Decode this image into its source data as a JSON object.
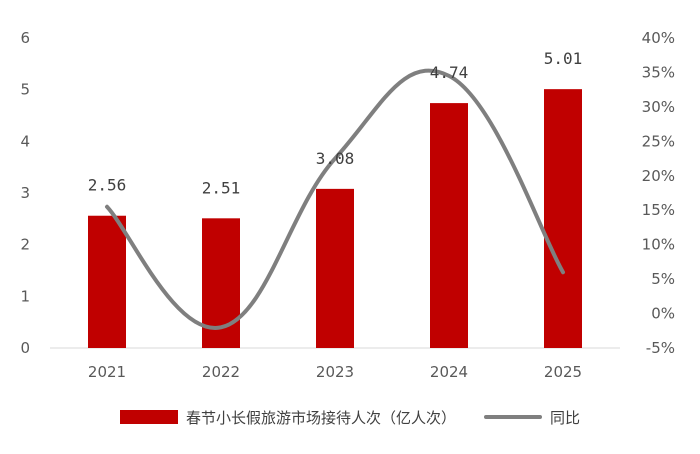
{
  "chart_data": {
    "type": "bar",
    "categories": [
      "2021",
      "2022",
      "2023",
      "2024",
      "2025"
    ],
    "series": [
      {
        "name": "春节小长假旅游市场接待人次（亿人次）",
        "type": "bar",
        "axis": "left",
        "values": [
          2.56,
          2.51,
          3.08,
          4.74,
          5.01
        ],
        "labels": [
          "2.56",
          "2.51",
          "3.08",
          "4.74",
          "5.01"
        ],
        "color": "#c00000"
      },
      {
        "name": "同比",
        "type": "line",
        "axis": "right",
        "smooth": true,
        "values": [
          15.5,
          -2,
          22.5,
          34.5,
          6
        ],
        "color": "#7f7f7f"
      }
    ],
    "y_left": {
      "range": [
        0,
        6
      ],
      "ticks": [
        "0",
        "1",
        "2",
        "3",
        "4",
        "5",
        "6"
      ]
    },
    "y_right": {
      "range": [
        -5,
        40
      ],
      "ticks": [
        "-5%",
        "0%",
        "5%",
        "10%",
        "15%",
        "20%",
        "25%",
        "30%",
        "35%",
        "40%"
      ]
    },
    "grid": false,
    "legend_position": "bottom"
  }
}
